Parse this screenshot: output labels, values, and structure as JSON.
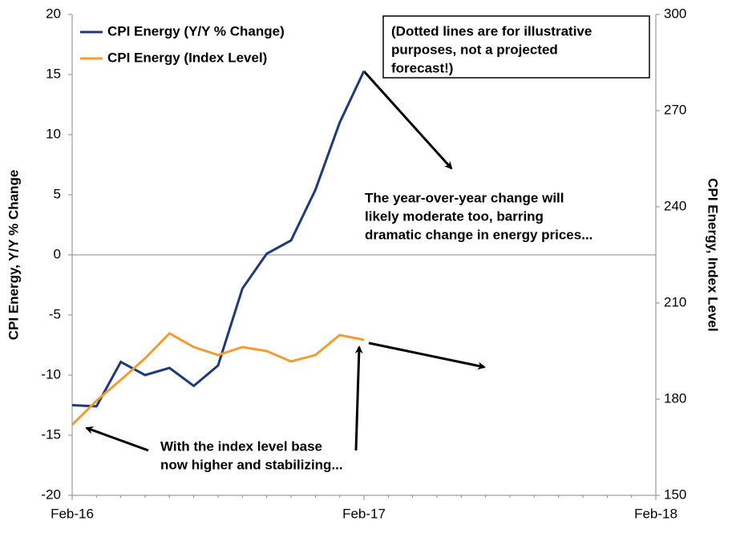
{
  "chart_data": {
    "type": "line",
    "categories": [
      "Feb-16",
      null,
      null,
      null,
      null,
      null,
      null,
      null,
      null,
      null,
      null,
      null,
      "Feb-17",
      null,
      null,
      null,
      null,
      null,
      null,
      null,
      null,
      null,
      null,
      null,
      "Feb-18"
    ],
    "series": [
      {
        "name": "CPI Energy (Y/Y % Change)",
        "color": "#1f3a7a",
        "axis": "y",
        "values": [
          -12.5,
          -12.6,
          -8.9,
          -10.0,
          -9.4,
          -10.9,
          -9.2,
          -2.8,
          0.1,
          1.2,
          5.4,
          11.0,
          15.3,
          null,
          null,
          null,
          null,
          null,
          null,
          null,
          null,
          null,
          null,
          null,
          null
        ]
      },
      {
        "name": "CPI Energy (Index Level)",
        "color": "#f39c32",
        "axis": "y2",
        "values": [
          172,
          179.5,
          186,
          192.75,
          200.5,
          196.25,
          193.75,
          196.25,
          195,
          191.75,
          193.75,
          200,
          198.5,
          null,
          null,
          null,
          null,
          null,
          null,
          null,
          null,
          null,
          null,
          null,
          null
        ]
      }
    ],
    "ylim": [
      -20,
      20
    ],
    "yticks": [
      -20,
      -15,
      -10,
      -5,
      0,
      5,
      10,
      15,
      20
    ],
    "y2lim": [
      150,
      300
    ],
    "y2ticks": [
      150,
      180,
      210,
      240,
      270,
      300
    ],
    "ylabel": "CPI Energy, Y/Y % Change",
    "y2label": "CPI Energy, Index Level",
    "legend": "upper left",
    "annotations": [
      [
        "(Dotted lines are for illustrative",
        "purposes, not a projected",
        "forecast!)"
      ],
      [
        "The year-over-year change will",
        "likely moderate too, barring",
        "dramatic change in energy prices..."
      ],
      [
        "With the index level base",
        "now higher and stabilizing..."
      ]
    ]
  }
}
